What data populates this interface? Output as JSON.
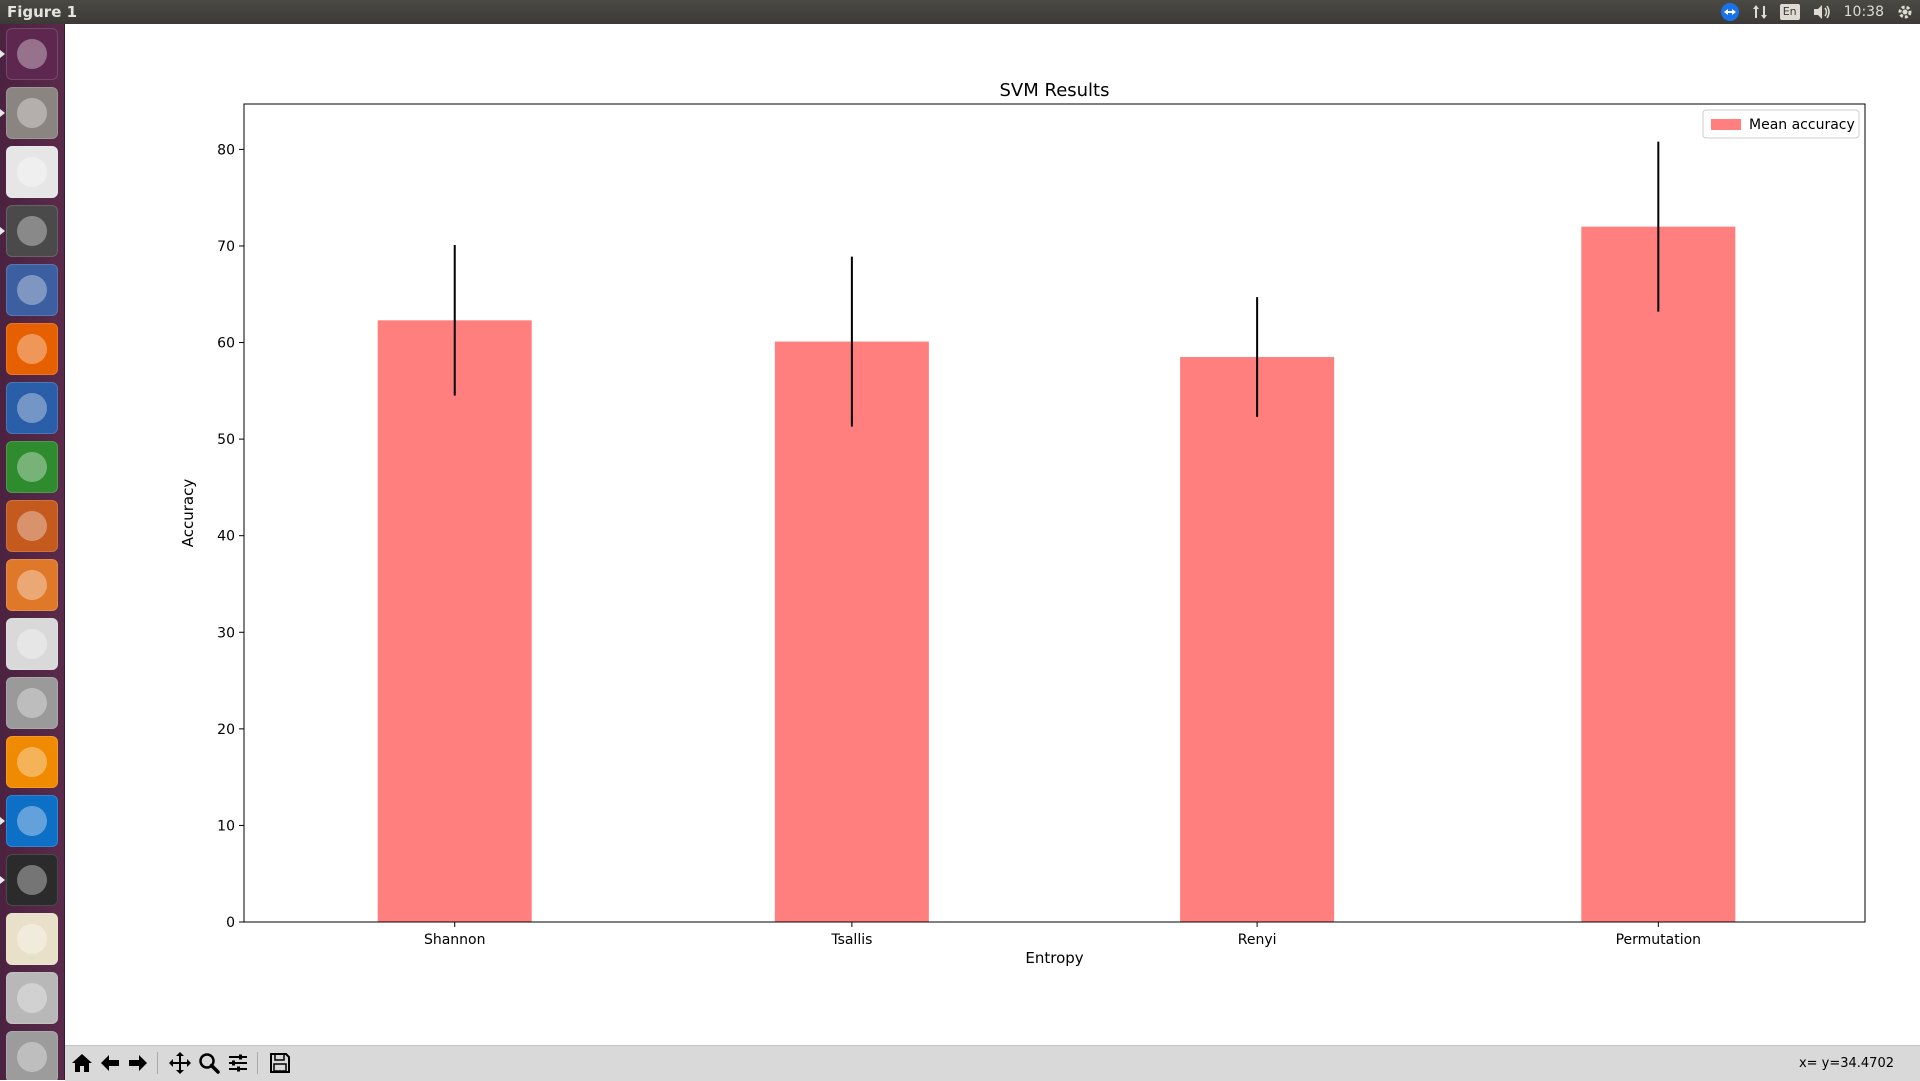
{
  "window": {
    "title": "Figure 1"
  },
  "tray": {
    "keyboard_layout": "En",
    "clock": "10:38"
  },
  "launcher": {
    "items": [
      {
        "name": "ubuntu-dash-icon",
        "color": "#5e2750"
      },
      {
        "name": "files-icon",
        "color": "#8a8580"
      },
      {
        "name": "chrome-icon",
        "color": "#e6e6e6"
      },
      {
        "name": "sublime-text-icon",
        "color": "#4a4a4a"
      },
      {
        "name": "ubuntu-one-icon",
        "color": "#3b5fa0"
      },
      {
        "name": "firefox-icon",
        "color": "#e66000"
      },
      {
        "name": "writer-icon",
        "color": "#2a5ea8"
      },
      {
        "name": "calc-icon",
        "color": "#2e8b2e"
      },
      {
        "name": "impress-icon",
        "color": "#c55a1e"
      },
      {
        "name": "software-center-icon",
        "color": "#e0782a"
      },
      {
        "name": "amazon-icon",
        "color": "#d9d9d9"
      },
      {
        "name": "system-settings-icon",
        "color": "#9a9a9a"
      },
      {
        "name": "vlc-icon",
        "color": "#f08a00"
      },
      {
        "name": "teamviewer-icon",
        "color": "#0e6fc6"
      },
      {
        "name": "terminal-icon",
        "color": "#2b2b2b"
      },
      {
        "name": "pinwheel-app-icon",
        "color": "#e8e0c8"
      },
      {
        "name": "drive-icon",
        "color": "#b8b8b8"
      },
      {
        "name": "trash-icon",
        "color": "#9c9c9c"
      }
    ]
  },
  "chart_data": {
    "type": "bar",
    "title": "SVM Results",
    "xlabel": "Entropy",
    "ylabel": "Accuracy",
    "categories": [
      "Shannon",
      "Tsallis",
      "Renyi",
      "Permutation"
    ],
    "series": [
      {
        "name": "Mean accuracy",
        "values": [
          62.3,
          60.1,
          58.5,
          72.0
        ],
        "error": [
          7.8,
          8.8,
          6.2,
          8.8
        ],
        "color": "#ff7f7f"
      }
    ],
    "yticks": [
      0,
      10,
      20,
      30,
      40,
      50,
      60,
      70,
      80
    ],
    "ylim": [
      0,
      84.7
    ],
    "grid": false,
    "legend_position": "top-right",
    "error_bar_color": "#000000"
  },
  "toolbar": {
    "buttons": [
      {
        "name": "home-icon"
      },
      {
        "name": "back-icon"
      },
      {
        "name": "forward-icon"
      },
      {
        "name": "pan-icon"
      },
      {
        "name": "zoom-icon"
      },
      {
        "name": "configure-subplots-icon"
      },
      {
        "name": "save-icon"
      }
    ],
    "coords_text": "x= y=34.4702"
  }
}
